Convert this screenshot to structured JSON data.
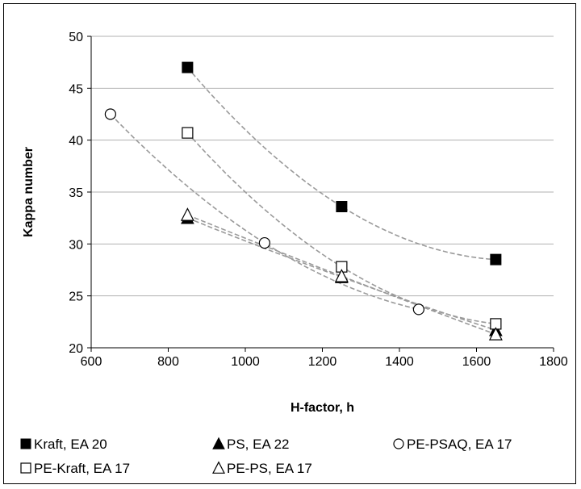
{
  "chart_data": {
    "type": "scatter",
    "xlabel": "H-factor,  h",
    "ylabel": "Kappa number",
    "xlim": [
      600,
      1800
    ],
    "ylim": [
      20,
      50
    ],
    "xticks": [
      "600",
      "800",
      "1000",
      "1200",
      "1400",
      "1600",
      "1800"
    ],
    "yticks": [
      "20",
      "25",
      "30",
      "35",
      "40",
      "45",
      "50"
    ],
    "grid": "horizontal",
    "legend_position": "bottom",
    "trendline_style": "dashed gray",
    "series": [
      {
        "name": "Kraft, EA 20",
        "marker": "square-filled",
        "x": [
          850,
          1250,
          1650
        ],
        "y": [
          47.0,
          33.6,
          28.5
        ]
      },
      {
        "name": "PS, EA 22",
        "marker": "triangle-filled",
        "x": [
          850,
          1250,
          1650
        ],
        "y": [
          32.5,
          26.8,
          21.7
        ]
      },
      {
        "name": "PE-PSAQ, EA 17",
        "marker": "circle-open",
        "x": [
          650,
          1050,
          1450
        ],
        "y": [
          42.5,
          30.1,
          23.7
        ]
      },
      {
        "name": "PE-Kraft, EA 17",
        "marker": "square-open",
        "x": [
          850,
          1250,
          1650
        ],
        "y": [
          40.7,
          27.8,
          22.3
        ]
      },
      {
        "name": "PE-PS, EA 17",
        "marker": "triangle-open",
        "x": [
          850,
          1250,
          1650
        ],
        "y": [
          32.8,
          26.9,
          21.3
        ]
      }
    ],
    "legend_rows": [
      [
        "Kraft, EA 20",
        "PS, EA 22",
        "PE-PSAQ, EA 17"
      ],
      [
        "PE-Kraft, EA 17",
        "PE-PS, EA 17"
      ]
    ]
  }
}
